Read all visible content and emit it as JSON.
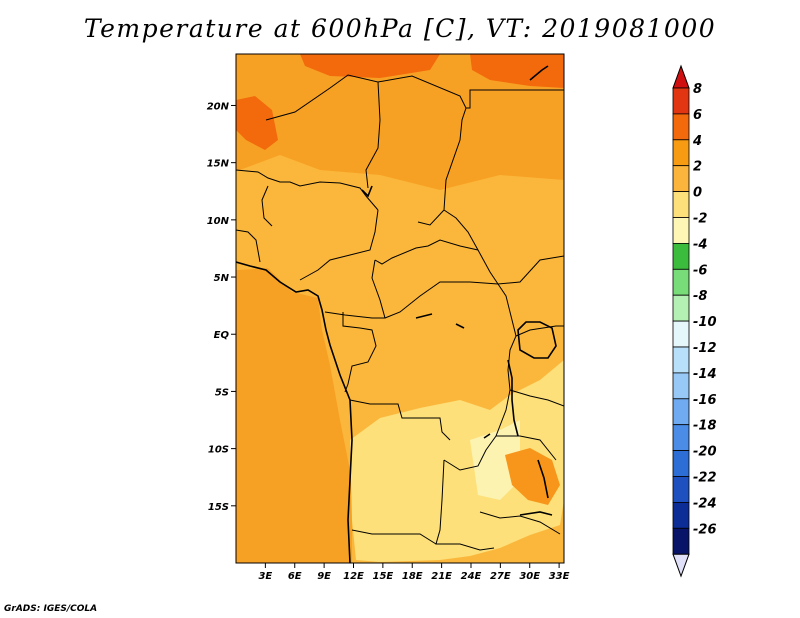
{
  "title": "Temperature at 600hPa [C], VT: 2019081000",
  "credit": "GrADS: IGES/COLA",
  "map": {
    "lon_range": [
      0,
      33.5
    ],
    "lat_range": [
      -20,
      24.5
    ],
    "lat_ticks": [
      {
        "value": 20,
        "label": "20N"
      },
      {
        "value": 15,
        "label": "15N"
      },
      {
        "value": 10,
        "label": "10N"
      },
      {
        "value": 5,
        "label": "5N"
      },
      {
        "value": 0,
        "label": "EQ"
      },
      {
        "value": -5,
        "label": "5S"
      },
      {
        "value": -10,
        "label": "10S"
      },
      {
        "value": -15,
        "label": "15S"
      }
    ],
    "lon_ticks": [
      {
        "value": 3,
        "label": "3E"
      },
      {
        "value": 6,
        "label": "6E"
      },
      {
        "value": 9,
        "label": "9E"
      },
      {
        "value": 12,
        "label": "12E"
      },
      {
        "value": 15,
        "label": "15E"
      },
      {
        "value": 18,
        "label": "18E"
      },
      {
        "value": 21,
        "label": "21E"
      },
      {
        "value": 24,
        "label": "24E"
      },
      {
        "value": 27,
        "label": "27E"
      },
      {
        "value": 30,
        "label": "30E"
      },
      {
        "value": 33,
        "label": "33E"
      }
    ]
  },
  "colorbar": {
    "top_arrow_color": "#d01010",
    "bottom_arrow_color": "#e0e0f8",
    "bins": [
      {
        "color": "#e23512"
      },
      {
        "color": "#f26a0c"
      },
      {
        "color": "#f79c12"
      },
      {
        "color": "#fbb53c"
      },
      {
        "color": "#fde07a"
      },
      {
        "color": "#fdf6b4"
      },
      {
        "color": "#3cbc3c"
      },
      {
        "color": "#78dc78"
      },
      {
        "color": "#b4f0b4"
      },
      {
        "color": "#e6f7fb"
      },
      {
        "color": "#b8e0fb"
      },
      {
        "color": "#98c8f6"
      },
      {
        "color": "#70aaf0"
      },
      {
        "color": "#4a8ce6"
      },
      {
        "color": "#2c6ed6"
      },
      {
        "color": "#1e50c0"
      },
      {
        "color": "#0c2c96"
      },
      {
        "color": "#081468"
      }
    ],
    "labels": [
      "8",
      "6",
      "4",
      "2",
      "0",
      "-2",
      "-4",
      "-6",
      "-8",
      "-10",
      "-12",
      "-14",
      "-16",
      "-18",
      "-20",
      "-22",
      "-24",
      "-26"
    ]
  },
  "field_colors": {
    "c0": "#f7a124",
    "c2": "#fbb73c",
    "c4": "#f7961a",
    "c6": "#f26a0c",
    "cn2": "#fde07a",
    "cn4": "#fdf3b0"
  }
}
